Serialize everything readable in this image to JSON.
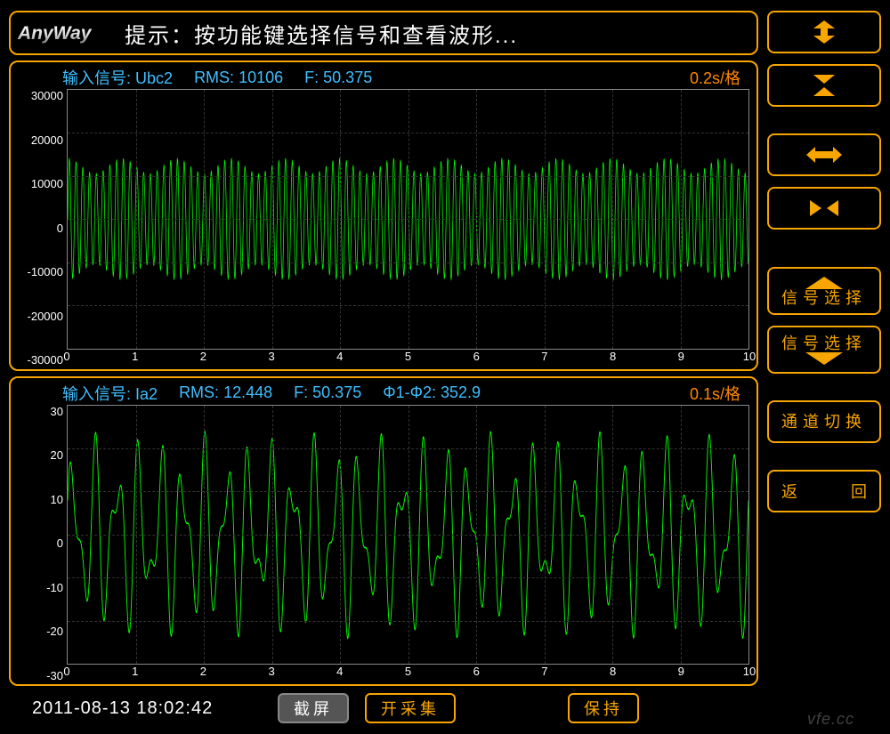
{
  "colors": {
    "background": "#000000",
    "border": "#f7a500",
    "info_text": "#3fbfff",
    "time_scale": "#ff8800",
    "axis_text": "#ffffff",
    "waveform": "#00ff00",
    "grid": "#333333",
    "hint_text": "#ffffff"
  },
  "header": {
    "logo_text": "AnyWay",
    "hint": "提示：按功能键选择信号和查看波形..."
  },
  "chart1": {
    "signal_label": "输入信号:",
    "signal_value": "Ubc2",
    "rms_label": "RMS:",
    "rms_value": "10106",
    "f_label": "F:",
    "f_value": "50.375",
    "time_scale": "0.2s/格",
    "y_ticks": [
      "30000",
      "20000",
      "10000",
      "0",
      "-10000",
      "-20000",
      "-30000"
    ],
    "y_min": -30000,
    "y_max": 30000,
    "x_ticks": [
      "0",
      "1",
      "2",
      "3",
      "4",
      "5",
      "6",
      "7",
      "8",
      "9",
      "10"
    ],
    "x_min": 0,
    "x_max": 10,
    "waveform": {
      "type": "amplitude-modulated-sine",
      "carrier_amp": 14000,
      "mod_depth": 0.25,
      "mod_period_x": 0.8,
      "carrier_freq_hz": 50.375,
      "sec_per_x": 0.2,
      "color": "#00ff00",
      "line_width": 1
    }
  },
  "chart2": {
    "signal_label": "输入信号:",
    "signal_value": "Ia2",
    "rms_label": "RMS:",
    "rms_value": "12.448",
    "f_label": "F:",
    "f_value": "50.375",
    "phase_label": "Φ1-Φ2:",
    "phase_value": "352.9",
    "time_scale": "0.1s/格",
    "y_ticks": [
      "30",
      "20",
      "10",
      "0",
      "-10",
      "-20",
      "-30"
    ],
    "y_min": -30,
    "y_max": 30,
    "x_ticks": [
      "0",
      "1",
      "2",
      "3",
      "4",
      "5",
      "6",
      "7",
      "8",
      "9",
      "10"
    ],
    "x_min": 0,
    "x_max": 10,
    "waveform": {
      "type": "dual-tone",
      "amp1": 15,
      "freq1_per_x": 3.1,
      "amp2": 9,
      "freq2_per_x": 5.0,
      "color": "#00ff00",
      "line_width": 1.2
    }
  },
  "bottom": {
    "timestamp": "2011-08-13 18:02:42",
    "screenshot": "截屏",
    "start_acq": "开采集",
    "hold": "保持"
  },
  "side_buttons": {
    "expand_v": "expand-vertical",
    "shrink_v": "shrink-vertical",
    "expand_h": "expand-horizontal",
    "shrink_h": "shrink-horizontal",
    "signal_select_1": "信号选择",
    "signal_select_2": "信号选择",
    "channel_switch": "通道切换",
    "return_a": "返",
    "return_b": "回"
  },
  "watermark": "vfe.cc"
}
